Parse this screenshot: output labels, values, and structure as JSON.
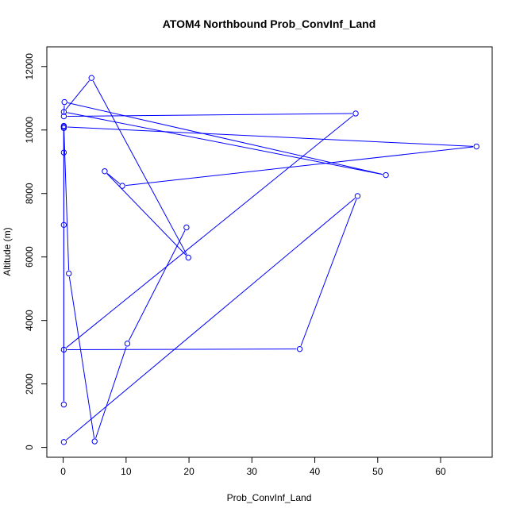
{
  "chart_data": {
    "type": "line",
    "title": "ATOM4 Northbound Prob_ConvInf_Land",
    "xlabel": "Prob_ConvInf_Land",
    "ylabel": "Altitude (m)",
    "xlim": [
      -2.6,
      68.2
    ],
    "ylim": [
      -310,
      12620
    ],
    "x_ticks": [
      0,
      10,
      20,
      30,
      40,
      50,
      60
    ],
    "y_ticks": [
      0,
      2000,
      4000,
      6000,
      8000,
      10000,
      12000
    ],
    "series_color": "#0000ff",
    "marker": "open-circle",
    "points": [
      {
        "x": 0.1,
        "y": 170
      },
      {
        "x": 46.8,
        "y": 7920
      },
      {
        "x": 37.6,
        "y": 3100
      },
      {
        "x": 0.1,
        "y": 3080
      },
      {
        "x": 46.5,
        "y": 10520
      },
      {
        "x": 0.1,
        "y": 10430
      },
      {
        "x": 0.2,
        "y": 10880
      },
      {
        "x": 51.3,
        "y": 8580
      },
      {
        "x": 0.1,
        "y": 10570
      },
      {
        "x": 4.5,
        "y": 11640
      },
      {
        "x": 19.9,
        "y": 5980
      },
      {
        "x": 6.6,
        "y": 8700
      },
      {
        "x": 9.4,
        "y": 8240
      },
      {
        "x": 65.7,
        "y": 9480
      },
      {
        "x": 0.1,
        "y": 10100
      },
      {
        "x": 0.1,
        "y": 9290
      },
      {
        "x": 0.1,
        "y": 10060
      },
      {
        "x": 0.1,
        "y": 7010
      },
      {
        "x": 0.1,
        "y": 1350
      },
      {
        "x": 0.1,
        "y": 10130
      },
      {
        "x": 0.9,
        "y": 5480
      },
      {
        "x": 5.0,
        "y": 190
      },
      {
        "x": 10.2,
        "y": 3270
      },
      {
        "x": 19.6,
        "y": 6930
      }
    ]
  }
}
